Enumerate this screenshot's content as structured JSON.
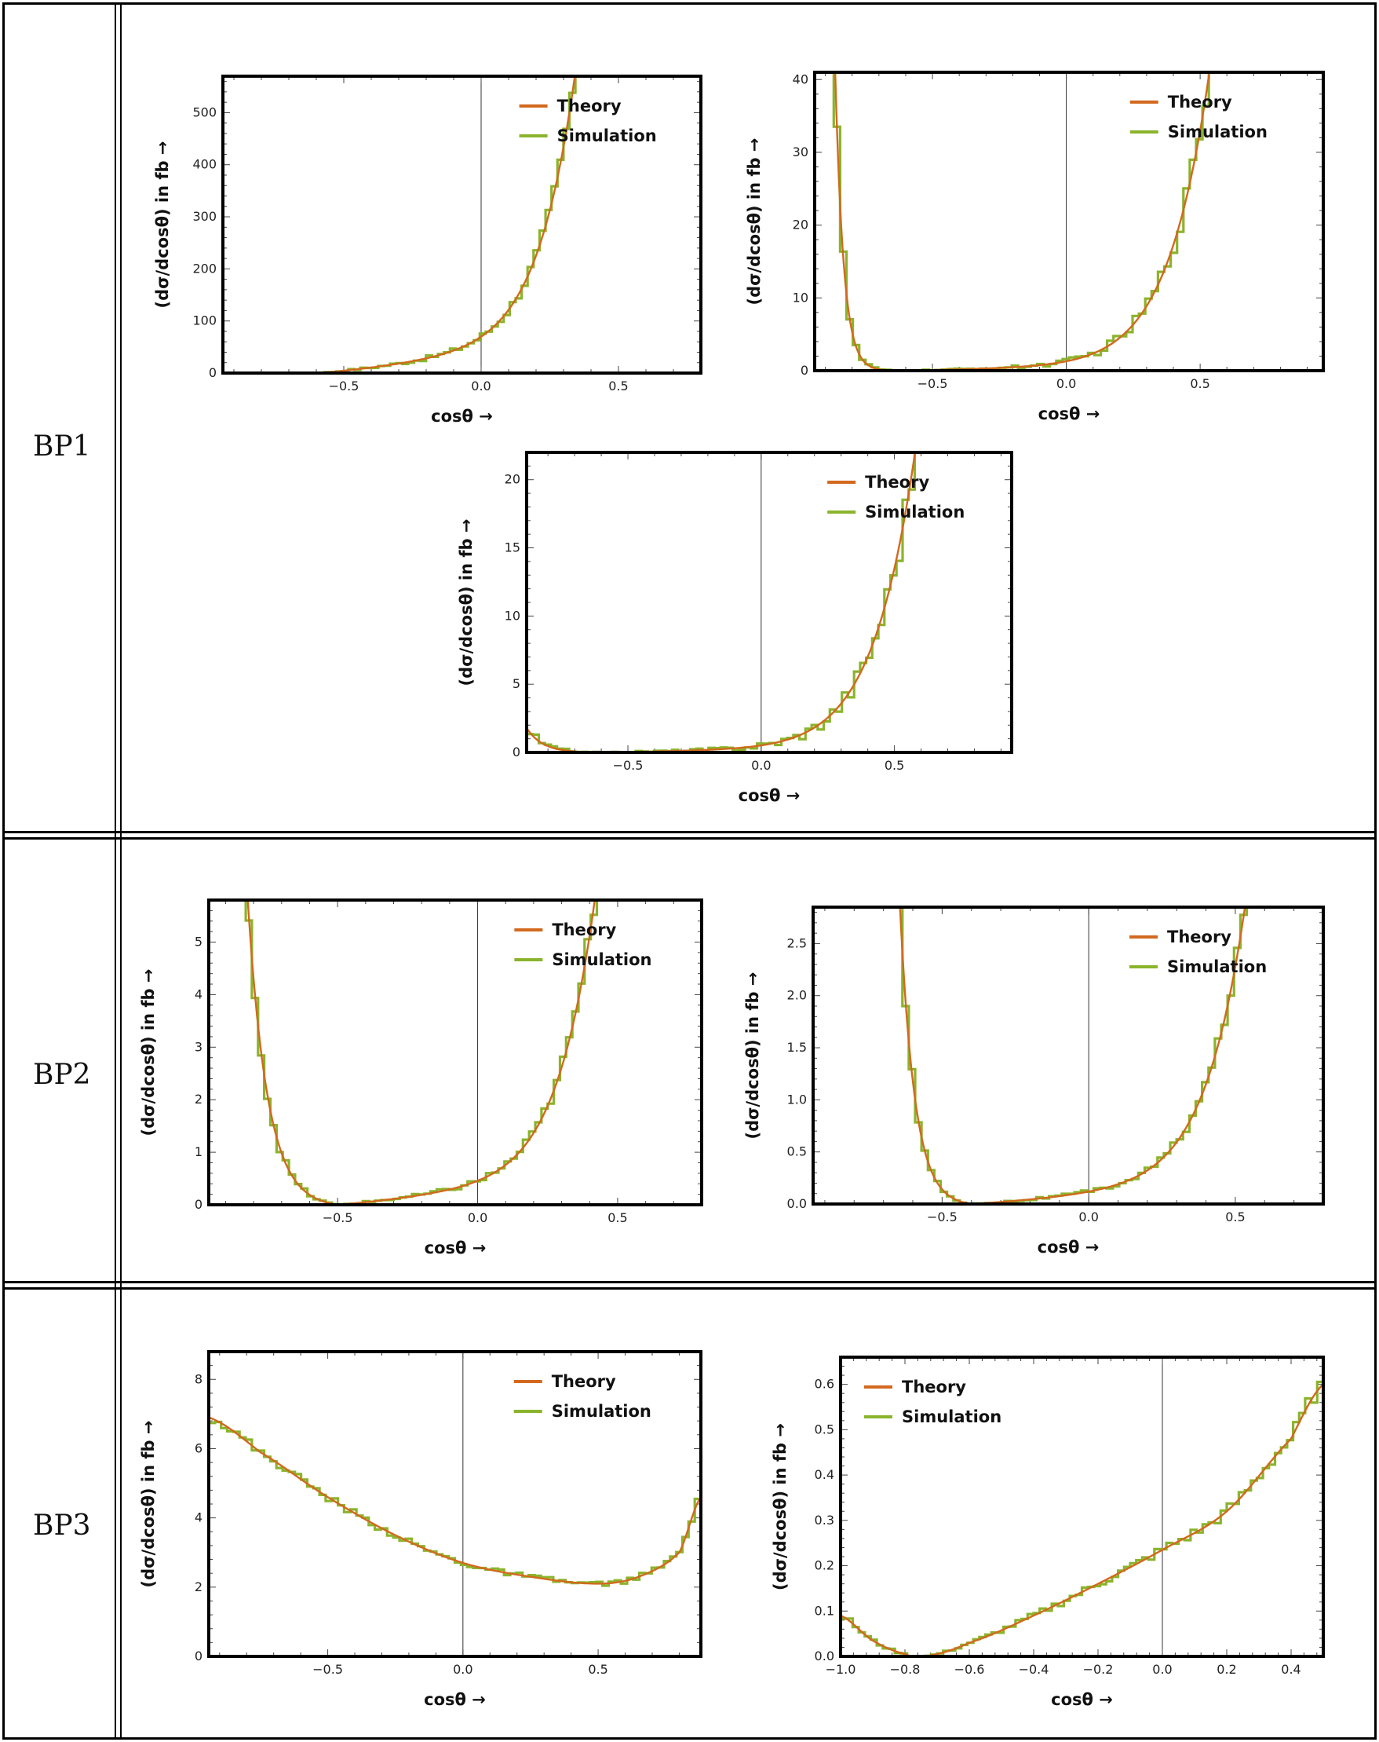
{
  "rows": [
    {
      "label": "BP1"
    },
    {
      "label": "BP2"
    },
    {
      "label": "BP3"
    }
  ],
  "colors": {
    "theory": "#d2691e",
    "simulation": "#8ab42c"
  },
  "chart_data": [
    {
      "id": "bp1-a",
      "type": "line",
      "row": "BP1",
      "xlim": [
        -0.94,
        0.8
      ],
      "ylim": [
        0,
        570
      ],
      "xticks": [
        -0.5,
        0.0,
        0.5
      ],
      "yticks": [
        0,
        100,
        200,
        300,
        400,
        500
      ],
      "xlabel": "cosθ →",
      "ylabel": "(dσ/dcosθ) in fb →",
      "legend": [
        "Theory",
        "Simulation"
      ],
      "legend_position": "top-right",
      "theory": {
        "a": 45,
        "b": 58,
        "c": 88,
        "d": 0.006,
        "e": 0.11,
        "x0": -0.59
      },
      "sim_jitter": 0.08
    },
    {
      "id": "bp1-b",
      "type": "line",
      "row": "BP1",
      "xlim": [
        -0.94,
        0.96
      ],
      "ylim": [
        0,
        41
      ],
      "xticks": [
        -0.5,
        0.0,
        0.5
      ],
      "yticks": [
        0,
        10,
        20,
        30,
        40
      ],
      "xlabel": "cosθ →",
      "ylabel": "(dσ/dcosθ) in fb →",
      "legend": [
        "Theory",
        "Simulation"
      ],
      "legend_position": "top-right",
      "theory": {
        "a": 0.6,
        "b": 1.0,
        "c": 1.5,
        "d": 0.016,
        "e": 0.031,
        "x0": -0.62
      },
      "sim_jitter": 0.12
    },
    {
      "id": "bp1-c",
      "type": "line",
      "row": "BP1",
      "xlim": [
        -0.88,
        0.94
      ],
      "ylim": [
        0,
        22
      ],
      "xticks": [
        -0.5,
        0.0,
        0.5
      ],
      "yticks": [
        0,
        5,
        10,
        15,
        20
      ],
      "xlabel": "cosθ →",
      "ylabel": "(dσ/dcosθ) in fb →",
      "legend": [
        "Theory",
        "Simulation"
      ],
      "legend_position": "top-right",
      "theory": {
        "a": 0.25,
        "b": 0.45,
        "c": 0.7,
        "d": 0.017,
        "e": 0.06,
        "x0": -0.6
      },
      "sim_jitter": 0.18
    },
    {
      "id": "bp2-a",
      "type": "line",
      "row": "BP2",
      "xlim": [
        -0.96,
        0.8
      ],
      "ylim": [
        0,
        5.8
      ],
      "xticks": [
        -0.5,
        0.0,
        0.5
      ],
      "yticks": [
        0,
        1,
        2,
        3,
        4,
        5
      ],
      "xlabel": "cosθ →",
      "ylabel": "(dσ/dcosθ) in fb →",
      "legend": [
        "Theory",
        "Simulation"
      ],
      "legend_position": "top-right",
      "theory": {
        "a": 0.45,
        "b": 0.55,
        "c": 1.0,
        "d": 0.06,
        "e": 0.07,
        "x0": -0.5
      },
      "sim_jitter": 0.09
    },
    {
      "id": "bp2-b",
      "type": "line",
      "row": "BP2",
      "xlim": [
        -0.94,
        0.8
      ],
      "ylim": [
        0,
        2.85
      ],
      "xticks": [
        -0.5,
        0.0,
        0.5
      ],
      "yticks": [
        0.0,
        0.5,
        1.0,
        1.5,
        2.0,
        2.5
      ],
      "xlabel": "cosθ →",
      "ylabel": "(dσ/dcosθ) in fb →",
      "legend": [
        "Theory",
        "Simulation"
      ],
      "legend_position": "top-right",
      "theory": {
        "a": 0.17,
        "b": 0.25,
        "c": 0.45,
        "d": 0.022,
        "e": 0.05,
        "x0": -0.4
      },
      "sim_jitter": 0.08
    },
    {
      "id": "bp3-a",
      "type": "line",
      "row": "BP3",
      "xlim": [
        -0.94,
        0.88
      ],
      "ylim": [
        0,
        8.8
      ],
      "xticks": [
        -0.5,
        0.0,
        0.5
      ],
      "yticks": [
        0,
        2,
        4,
        6,
        8
      ],
      "xlabel": "cosθ →",
      "ylabel": "(dσ/dcosθ) in fb →",
      "legend": [
        "Theory",
        "Simulation"
      ],
      "legend_position": "top-right",
      "curve": "poly",
      "points": [
        [
          -0.94,
          6.9
        ],
        [
          -0.75,
          5.9
        ],
        [
          -0.5,
          4.6
        ],
        [
          -0.25,
          3.5
        ],
        [
          0.0,
          2.7
        ],
        [
          0.25,
          2.3
        ],
        [
          0.5,
          2.1
        ],
        [
          0.65,
          2.3
        ],
        [
          0.8,
          3.0
        ],
        [
          0.88,
          4.6
        ]
      ],
      "sim_jitter": 0.04
    },
    {
      "id": "bp3-b",
      "type": "line",
      "row": "BP3",
      "xlim": [
        -1.0,
        0.5
      ],
      "ylim": [
        0,
        0.66
      ],
      "xticks": [
        -1.0,
        -0.8,
        -0.6,
        -0.4,
        -0.2,
        0.0,
        0.2,
        0.4
      ],
      "yticks": [
        0.0,
        0.1,
        0.2,
        0.3,
        0.4,
        0.5,
        0.6
      ],
      "xlabel": "cosθ →",
      "ylabel": "(dσ/dcosθ) in fb →",
      "legend": [
        "Theory",
        "Simulation"
      ],
      "legend_position": "top-left",
      "curve": "poly",
      "points": [
        [
          -1.0,
          0.09
        ],
        [
          -0.9,
          0.035
        ],
        [
          -0.8,
          0.005
        ],
        [
          -0.74,
          0.0
        ],
        [
          -0.6,
          0.03
        ],
        [
          -0.4,
          0.09
        ],
        [
          -0.2,
          0.16
        ],
        [
          0.0,
          0.235
        ],
        [
          0.2,
          0.32
        ],
        [
          0.4,
          0.48
        ],
        [
          0.5,
          0.6
        ]
      ],
      "sim_jitter": 0.07
    }
  ]
}
